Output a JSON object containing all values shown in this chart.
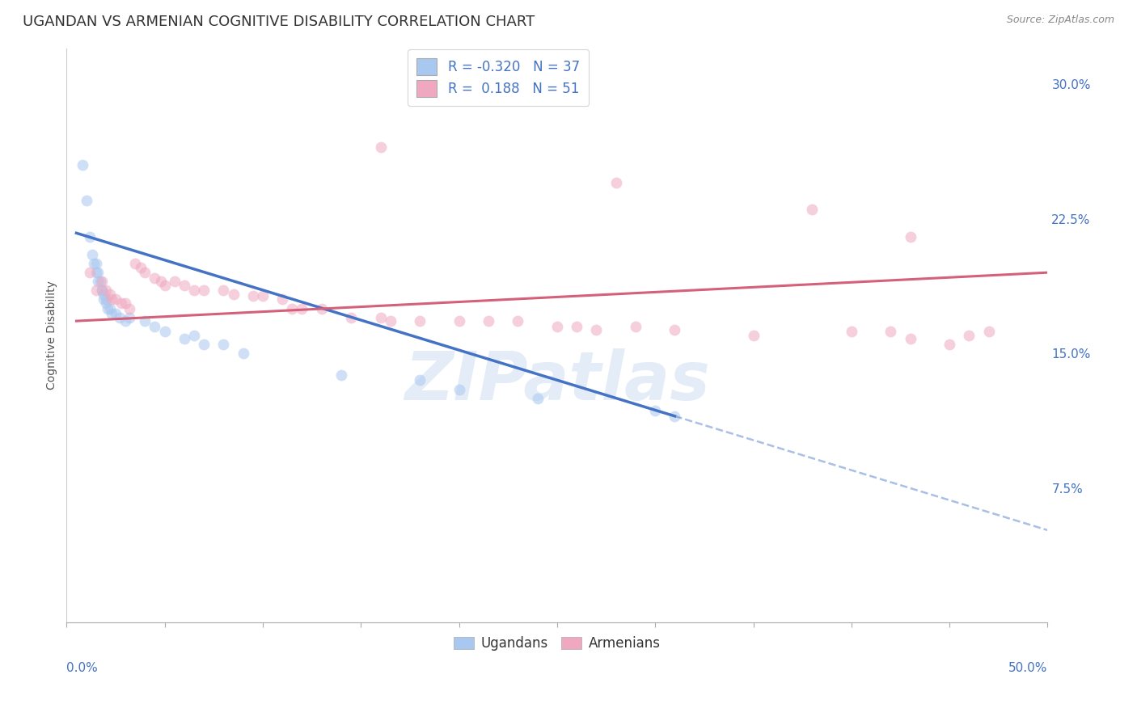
{
  "title": "UGANDAN VS ARMENIAN COGNITIVE DISABILITY CORRELATION CHART",
  "source": "Source: ZipAtlas.com",
  "ylabel": "Cognitive Disability",
  "xlim": [
    0.0,
    0.5
  ],
  "ylim": [
    0.0,
    0.32
  ],
  "yticks_right": [
    0.075,
    0.15,
    0.225,
    0.3
  ],
  "ytick_labels_right": [
    "7.5%",
    "15.0%",
    "22.5%",
    "30.0%"
  ],
  "xtick_left_label": "0.0%",
  "xtick_right_label": "50.0%",
  "ugandan_color": "#a8c8f0",
  "armenian_color": "#f0a8c0",
  "ugandan_line_color": "#4472c4",
  "armenian_line_color": "#d4607a",
  "ugandan_r": -0.32,
  "ugandan_n": 37,
  "armenian_r": 0.188,
  "armenian_n": 51,
  "background_color": "#ffffff",
  "grid_color": "#cccccc",
  "watermark_text": "ZIPatlas",
  "ugandan_scatter": [
    [
      0.008,
      0.255
    ],
    [
      0.01,
      0.235
    ],
    [
      0.012,
      0.215
    ],
    [
      0.013,
      0.205
    ],
    [
      0.014,
      0.2
    ],
    [
      0.015,
      0.2
    ],
    [
      0.015,
      0.195
    ],
    [
      0.016,
      0.195
    ],
    [
      0.016,
      0.19
    ],
    [
      0.017,
      0.19
    ],
    [
      0.018,
      0.185
    ],
    [
      0.018,
      0.185
    ],
    [
      0.019,
      0.183
    ],
    [
      0.019,
      0.18
    ],
    [
      0.02,
      0.18
    ],
    [
      0.02,
      0.178
    ],
    [
      0.021,
      0.175
    ],
    [
      0.022,
      0.175
    ],
    [
      0.023,
      0.172
    ],
    [
      0.025,
      0.172
    ],
    [
      0.027,
      0.17
    ],
    [
      0.03,
      0.168
    ],
    [
      0.032,
      0.17
    ],
    [
      0.04,
      0.168
    ],
    [
      0.045,
      0.165
    ],
    [
      0.05,
      0.162
    ],
    [
      0.06,
      0.158
    ],
    [
      0.065,
      0.16
    ],
    [
      0.07,
      0.155
    ],
    [
      0.08,
      0.155
    ],
    [
      0.09,
      0.15
    ],
    [
      0.14,
      0.138
    ],
    [
      0.18,
      0.135
    ],
    [
      0.2,
      0.13
    ],
    [
      0.24,
      0.125
    ],
    [
      0.3,
      0.118
    ],
    [
      0.31,
      0.115
    ]
  ],
  "armenian_scatter": [
    [
      0.012,
      0.195
    ],
    [
      0.015,
      0.185
    ],
    [
      0.018,
      0.19
    ],
    [
      0.02,
      0.185
    ],
    [
      0.022,
      0.183
    ],
    [
      0.023,
      0.18
    ],
    [
      0.025,
      0.18
    ],
    [
      0.028,
      0.178
    ],
    [
      0.03,
      0.178
    ],
    [
      0.032,
      0.175
    ],
    [
      0.035,
      0.2
    ],
    [
      0.038,
      0.198
    ],
    [
      0.04,
      0.195
    ],
    [
      0.045,
      0.192
    ],
    [
      0.048,
      0.19
    ],
    [
      0.05,
      0.188
    ],
    [
      0.055,
      0.19
    ],
    [
      0.06,
      0.188
    ],
    [
      0.065,
      0.185
    ],
    [
      0.07,
      0.185
    ],
    [
      0.08,
      0.185
    ],
    [
      0.085,
      0.183
    ],
    [
      0.095,
      0.182
    ],
    [
      0.1,
      0.182
    ],
    [
      0.11,
      0.18
    ],
    [
      0.115,
      0.175
    ],
    [
      0.12,
      0.175
    ],
    [
      0.13,
      0.175
    ],
    [
      0.145,
      0.17
    ],
    [
      0.16,
      0.17
    ],
    [
      0.165,
      0.168
    ],
    [
      0.18,
      0.168
    ],
    [
      0.2,
      0.168
    ],
    [
      0.215,
      0.168
    ],
    [
      0.23,
      0.168
    ],
    [
      0.25,
      0.165
    ],
    [
      0.26,
      0.165
    ],
    [
      0.27,
      0.163
    ],
    [
      0.29,
      0.165
    ],
    [
      0.31,
      0.163
    ],
    [
      0.35,
      0.16
    ],
    [
      0.4,
      0.162
    ],
    [
      0.42,
      0.162
    ],
    [
      0.43,
      0.158
    ],
    [
      0.45,
      0.155
    ],
    [
      0.46,
      0.16
    ],
    [
      0.47,
      0.162
    ],
    [
      0.28,
      0.245
    ],
    [
      0.38,
      0.23
    ],
    [
      0.16,
      0.265
    ],
    [
      0.43,
      0.215
    ]
  ],
  "title_fontsize": 13,
  "axis_label_fontsize": 10,
  "tick_fontsize": 11,
  "legend_fontsize": 12,
  "dot_size": 100,
  "dot_alpha": 0.55
}
